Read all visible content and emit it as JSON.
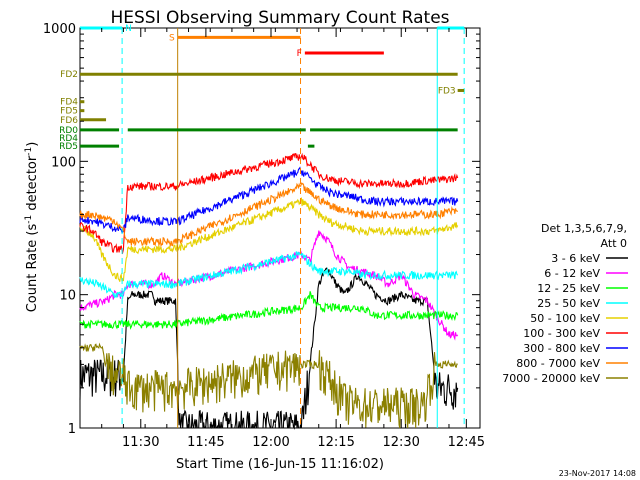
{
  "chart_data": {
    "type": "line",
    "title": "HESSI Observing Summary Count Rates",
    "xlabel": "Start Time (16-Jun-15 11:16:02)",
    "ylabel_main": "Count Rate (s",
    "ylabel_sup1": "-1",
    "ylabel_mid": " detector",
    "ylabel_sup2": "-1",
    "ylabel_end": ")",
    "y_log": true,
    "ylim": [
      1,
      1000
    ],
    "xlim_min": [
      0,
      88
    ],
    "x_ticks": [
      {
        "min": 14,
        "label": "11:30"
      },
      {
        "min": 29,
        "label": "11:45"
      },
      {
        "min": 44,
        "label": "12:00"
      },
      {
        "min": 59,
        "label": "12:15"
      },
      {
        "min": 74,
        "label": "12:30"
      },
      {
        "min": 89,
        "label": "12:45"
      }
    ],
    "y_ticks": [
      {
        "v": 1,
        "label": "1"
      },
      {
        "v": 10,
        "label": "10"
      },
      {
        "v": 100,
        "label": "100"
      },
      {
        "v": 1000,
        "label": "1000"
      }
    ],
    "legend": {
      "header1": "Det 1,3,5,6,7,9,",
      "header2": "Att 0",
      "placement": "right",
      "entries": [
        {
          "label": "3 - 6 keV",
          "color": "#000000"
        },
        {
          "label": "6 - 12 keV",
          "color": "#ff00ff"
        },
        {
          "label": "12 - 25 keV",
          "color": "#00ff00"
        },
        {
          "label": "25 - 50 keV",
          "color": "#00ffff"
        },
        {
          "label": "50 - 100 keV",
          "color": "#e5d000"
        },
        {
          "label": "100 - 300 keV",
          "color": "#ff0000"
        },
        {
          "label": "300 - 800 keV",
          "color": "#0000ff"
        },
        {
          "label": "800 - 7000 keV",
          "color": "#ff8000"
        },
        {
          "label": "7000 - 20000 keV",
          "color": "#8b8000"
        }
      ]
    },
    "series": [
      {
        "name": "3 - 6 keV",
        "color": "#000000",
        "points": [
          [
            0,
            2.5
          ],
          [
            10,
            2.5
          ],
          [
            11,
            9
          ],
          [
            12,
            10
          ],
          [
            17,
            10
          ],
          [
            17.2,
            9
          ],
          [
            22,
            9
          ],
          [
            23,
            1
          ],
          [
            50,
            1
          ],
          [
            51,
            1
          ],
          [
            53,
            3
          ],
          [
            55,
            12
          ],
          [
            57,
            16
          ],
          [
            59,
            12
          ],
          [
            61,
            10
          ],
          [
            64,
            14
          ],
          [
            66,
            12
          ],
          [
            68,
            10
          ],
          [
            71,
            9
          ],
          [
            74,
            10
          ],
          [
            77,
            9
          ],
          [
            80,
            9
          ],
          [
            82,
            2
          ],
          [
            87,
            2
          ]
        ]
      },
      {
        "name": "6 - 12 keV",
        "color": "#ff00ff",
        "points": [
          [
            0,
            8
          ],
          [
            6,
            9
          ],
          [
            8,
            10
          ],
          [
            10,
            10
          ],
          [
            11,
            12
          ],
          [
            17,
            12
          ],
          [
            19,
            14
          ],
          [
            22,
            12
          ],
          [
            51,
            20
          ],
          [
            53,
            18
          ],
          [
            55,
            30
          ],
          [
            57,
            26
          ],
          [
            59,
            20
          ],
          [
            62,
            16
          ],
          [
            65,
            15
          ],
          [
            68,
            14
          ],
          [
            71,
            12
          ],
          [
            74,
            14
          ],
          [
            77,
            10
          ],
          [
            80,
            9
          ],
          [
            82,
            7
          ],
          [
            85,
            5
          ],
          [
            87,
            5
          ]
        ]
      },
      {
        "name": "12 - 25 keV",
        "color": "#00ff00",
        "points": [
          [
            0,
            6
          ],
          [
            4,
            6
          ],
          [
            8,
            6
          ],
          [
            10,
            6
          ],
          [
            11,
            6
          ],
          [
            17,
            6
          ],
          [
            22,
            6
          ],
          [
            51,
            8
          ],
          [
            53,
            10
          ],
          [
            55,
            8
          ],
          [
            57,
            8
          ],
          [
            59,
            8
          ],
          [
            62,
            8
          ],
          [
            65,
            8
          ],
          [
            68,
            7
          ],
          [
            71,
            7
          ],
          [
            74,
            7
          ],
          [
            77,
            7
          ],
          [
            80,
            7
          ],
          [
            82,
            7
          ],
          [
            85,
            7
          ],
          [
            87,
            7
          ]
        ]
      },
      {
        "name": "25 - 50 keV",
        "color": "#00ffff",
        "points": [
          [
            0,
            13
          ],
          [
            4,
            12
          ],
          [
            8,
            10
          ],
          [
            10,
            10
          ],
          [
            11,
            12
          ],
          [
            17,
            12
          ],
          [
            22,
            12
          ],
          [
            51,
            20
          ],
          [
            53,
            17
          ],
          [
            55,
            15
          ],
          [
            57,
            15
          ],
          [
            59,
            15
          ],
          [
            62,
            15
          ],
          [
            65,
            14
          ],
          [
            68,
            14
          ],
          [
            71,
            14
          ],
          [
            74,
            14
          ],
          [
            77,
            14
          ],
          [
            80,
            14
          ],
          [
            82,
            14
          ],
          [
            85,
            14
          ],
          [
            87,
            14
          ]
        ]
      },
      {
        "name": "50 - 100 keV",
        "color": "#e5d000",
        "points": [
          [
            0,
            32
          ],
          [
            3,
            28
          ],
          [
            5,
            20
          ],
          [
            8,
            14
          ],
          [
            10,
            13
          ],
          [
            11,
            22
          ],
          [
            17,
            22
          ],
          [
            22,
            22
          ],
          [
            51,
            50
          ],
          [
            53,
            45
          ],
          [
            55,
            40
          ],
          [
            57,
            36
          ],
          [
            59,
            34
          ],
          [
            62,
            32
          ],
          [
            65,
            30
          ],
          [
            68,
            30
          ],
          [
            71,
            30
          ],
          [
            74,
            30
          ],
          [
            77,
            30
          ],
          [
            80,
            30
          ],
          [
            82,
            30
          ],
          [
            85,
            32
          ],
          [
            87,
            33
          ]
        ]
      },
      {
        "name": "100 - 300 keV",
        "color": "#ff0000",
        "points": [
          [
            0,
            33
          ],
          [
            3,
            30
          ],
          [
            5,
            25
          ],
          [
            8,
            22
          ],
          [
            10,
            22
          ],
          [
            11,
            65
          ],
          [
            17,
            65
          ],
          [
            22,
            65
          ],
          [
            51,
            110
          ],
          [
            53,
            95
          ],
          [
            55,
            80
          ],
          [
            57,
            75
          ],
          [
            59,
            72
          ],
          [
            62,
            70
          ],
          [
            65,
            68
          ],
          [
            68,
            68
          ],
          [
            71,
            68
          ],
          [
            74,
            68
          ],
          [
            77,
            70
          ],
          [
            80,
            72
          ],
          [
            82,
            72
          ],
          [
            85,
            74
          ],
          [
            87,
            75
          ]
        ]
      },
      {
        "name": "300 - 800 keV",
        "color": "#0000ff",
        "points": [
          [
            0,
            37
          ],
          [
            3,
            36
          ],
          [
            5,
            34
          ],
          [
            8,
            32
          ],
          [
            10,
            30
          ],
          [
            11,
            38
          ],
          [
            17,
            36
          ],
          [
            22,
            35
          ],
          [
            51,
            85
          ],
          [
            53,
            75
          ],
          [
            55,
            65
          ],
          [
            57,
            60
          ],
          [
            59,
            57
          ],
          [
            62,
            55
          ],
          [
            65,
            52
          ],
          [
            68,
            50
          ],
          [
            71,
            50
          ],
          [
            74,
            50
          ],
          [
            77,
            50
          ],
          [
            80,
            50
          ],
          [
            82,
            50
          ],
          [
            85,
            50
          ],
          [
            87,
            50
          ]
        ]
      },
      {
        "name": "800 - 7000 keV",
        "color": "#ff8000",
        "points": [
          [
            0,
            40
          ],
          [
            3,
            40
          ],
          [
            5,
            38
          ],
          [
            8,
            36
          ],
          [
            10,
            30
          ],
          [
            11,
            25
          ],
          [
            17,
            25
          ],
          [
            22,
            25
          ],
          [
            51,
            65
          ],
          [
            53,
            58
          ],
          [
            55,
            52
          ],
          [
            57,
            48
          ],
          [
            59,
            45
          ],
          [
            62,
            42
          ],
          [
            65,
            40
          ],
          [
            68,
            40
          ],
          [
            71,
            40
          ],
          [
            74,
            40
          ],
          [
            77,
            40
          ],
          [
            80,
            40
          ],
          [
            82,
            40
          ],
          [
            85,
            42
          ],
          [
            87,
            42
          ]
        ]
      },
      {
        "name": "7000 - 20000 keV",
        "color": "#8b8000",
        "points": [
          [
            0,
            4
          ],
          [
            3,
            4
          ],
          [
            5,
            4
          ],
          [
            6,
            3
          ],
          [
            8,
            2.5
          ],
          [
            10,
            2.5
          ],
          [
            11,
            2
          ],
          [
            17,
            2
          ],
          [
            22,
            2
          ],
          [
            51,
            3
          ],
          [
            53,
            3
          ],
          [
            55,
            3
          ],
          [
            57,
            2.5
          ],
          [
            59,
            2
          ],
          [
            61,
            1.6
          ],
          [
            64,
            1.5
          ],
          [
            67,
            1.5
          ],
          [
            70,
            1.5
          ],
          [
            73,
            1.5
          ],
          [
            76,
            1.5
          ],
          [
            79,
            1.5
          ],
          [
            82,
            3
          ],
          [
            85,
            3
          ],
          [
            87,
            3
          ]
        ]
      }
    ],
    "vlines": [
      {
        "min": 9.7,
        "color": "#00ffff",
        "style": "dash"
      },
      {
        "min": 22.5,
        "color": "#c08000",
        "style": "solid"
      },
      {
        "min": 50.8,
        "color": "#ff8000",
        "style": "dash"
      },
      {
        "min": 82.3,
        "color": "#00ffff",
        "style": "solid"
      },
      {
        "min": 88.5,
        "color": "#00ffff",
        "style": "dash"
      }
    ],
    "flag_bars": [
      {
        "label": "N",
        "label_color": "#00ffff",
        "color": "#00ffff",
        "y_level": 1000,
        "segments": [
          [
            0,
            9.7
          ],
          [
            82.3,
            88.5
          ]
        ]
      },
      {
        "label": "S",
        "label_color": "#ff8000",
        "color": "#ff8000",
        "y_level": 850,
        "segments": [
          [
            22.5,
            50.8
          ]
        ]
      },
      {
        "label": "F",
        "label_color": "#ff0000",
        "color": "#ff0000",
        "y_level": 650,
        "segments": [
          [
            51.8,
            70
          ]
        ]
      },
      {
        "label": "FD2",
        "label_color": "#808000",
        "color": "#808000",
        "y_level": 450,
        "segments": [
          [
            0,
            87
          ]
        ]
      },
      {
        "label": "FD3",
        "label_color": "#808000",
        "color": "#808000",
        "y_level": 340,
        "segments": [
          [
            87,
            88.5
          ]
        ]
      },
      {
        "label": "FD4",
        "label_color": "#808000",
        "color": "#808000",
        "y_level": 280,
        "segments": [
          [
            0,
            1
          ]
        ]
      },
      {
        "label": "FD5",
        "label_color": "#808000",
        "color": "#808000",
        "y_level": 240,
        "segments": [
          [
            0,
            1
          ]
        ]
      },
      {
        "label": "FD6",
        "label_color": "#808000",
        "color": "#808000",
        "y_level": 205,
        "segments": [
          [
            0,
            6
          ]
        ]
      },
      {
        "label": "RD0",
        "label_color": "#008000",
        "color": "#008000",
        "y_level": 172,
        "segments": [
          [
            0,
            9
          ],
          [
            11,
            52
          ],
          [
            53,
            87
          ]
        ]
      },
      {
        "label": "RD4",
        "label_color": "#008000",
        "color": "#008000",
        "y_level": 150,
        "segments": []
      },
      {
        "label": "RD5",
        "label_color": "#008000",
        "color": "#008000",
        "y_level": 130,
        "segments": [
          [
            0,
            9
          ],
          [
            52.5,
            54
          ]
        ]
      }
    ]
  },
  "footer_stamp": "23-Nov-2017 14:08"
}
